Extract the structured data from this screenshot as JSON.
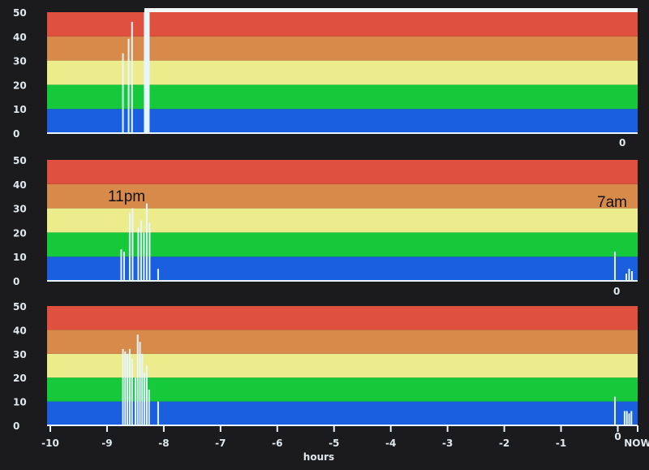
{
  "chart_data": [
    {
      "type": "bar",
      "title": "",
      "xlabel": "",
      "ylabel": "",
      "xlim": [
        -10,
        0.35
      ],
      "ylim": [
        0,
        50
      ],
      "yticks": [
        "0",
        "10",
        "20",
        "30",
        "40",
        "50"
      ],
      "bands": [
        {
          "from": 0,
          "to": 10,
          "color": "#1a5fe0"
        },
        {
          "from": 10,
          "to": 20,
          "color": "#15c93a"
        },
        {
          "from": 20,
          "to": 30,
          "color": "#ecec8c"
        },
        {
          "from": 30,
          "to": 40,
          "color": "#d88a4a"
        },
        {
          "from": 40,
          "to": 50,
          "color": "#e0503e"
        }
      ],
      "x": [
        -8.72,
        -8.62,
        -8.56,
        -8.3
      ],
      "values": [
        33,
        39,
        46,
        50
      ],
      "top_line_from": -8.3,
      "end_label": "0"
    },
    {
      "type": "bar",
      "xlim": [
        -10,
        0.35
      ],
      "ylim": [
        0,
        50
      ],
      "yticks": [
        "0",
        "10",
        "20",
        "30",
        "40",
        "50"
      ],
      "x": [
        -8.75,
        -8.7,
        -8.6,
        -8.55,
        -8.45,
        -8.4,
        -8.35,
        -8.3,
        -8.25,
        -8.1,
        -0.05,
        0.15,
        0.2,
        0.25
      ],
      "values": [
        13,
        12,
        28,
        30,
        22,
        25,
        20,
        32,
        24,
        5,
        12,
        3,
        5,
        4
      ],
      "annotations": [
        "11pm",
        "7am"
      ],
      "end_label": "0"
    },
    {
      "type": "bar",
      "xlim": [
        -10,
        0.35
      ],
      "ylim": [
        0,
        50
      ],
      "yticks": [
        "0",
        "10",
        "20",
        "30",
        "40",
        "50"
      ],
      "x": [
        -8.72,
        -8.68,
        -8.64,
        -8.6,
        -8.56,
        -8.5,
        -8.46,
        -8.42,
        -8.38,
        -8.34,
        -8.3,
        -8.26,
        -8.1,
        -0.05,
        0.12,
        0.16,
        0.2,
        0.24
      ],
      "values": [
        32,
        31,
        30,
        32,
        28,
        20,
        38,
        35,
        30,
        22,
        25,
        15,
        10,
        12,
        6,
        6,
        5,
        6
      ],
      "xticks": [
        "-10",
        "-9",
        "-8",
        "-7",
        "-6",
        "-5",
        "-4",
        "-3",
        "-2",
        "-1",
        "0",
        "NOW"
      ],
      "xtick_values": [
        -10,
        -9,
        -8,
        -7,
        -6,
        -5,
        -4,
        -3,
        -2,
        -1,
        0,
        0.35
      ],
      "xlabel": "hours"
    }
  ]
}
